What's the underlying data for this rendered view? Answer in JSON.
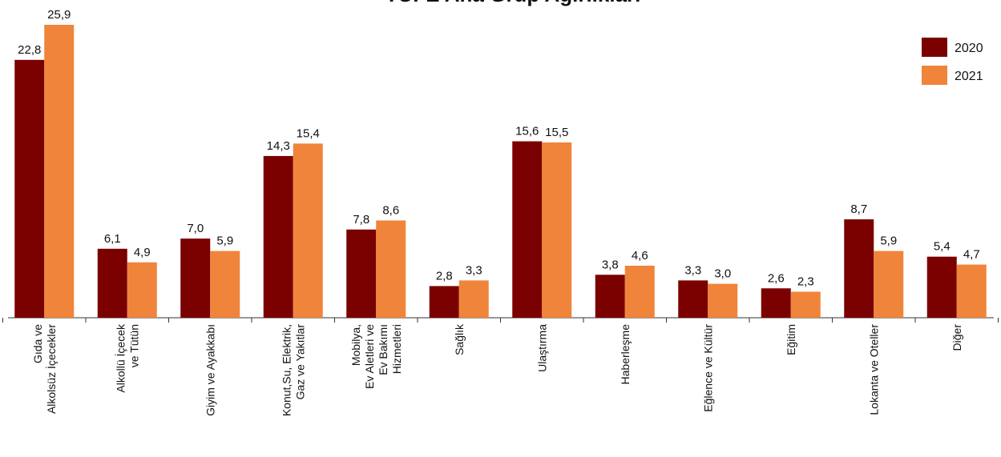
{
  "chart_data": {
    "type": "bar",
    "title": "TÜFE Ana Grup Ağırlıkları",
    "categories": [
      [
        "Gıda ve",
        "Alkolsüz İçecekler"
      ],
      [
        "Alkollü İçecek",
        "ve Tütün"
      ],
      [
        "Giyim ve Ayakkabı"
      ],
      [
        "Konut,Su, Elektrik,",
        "Gaz ve Yakıtlar"
      ],
      [
        "Mobilya,",
        "Ev Aletleri ve",
        "Ev Bakımı",
        "Hizmetleri"
      ],
      [
        "Sağlık"
      ],
      [
        "Ulaştırma"
      ],
      [
        "Haberleşme"
      ],
      [
        "Eğlence ve Kültür"
      ],
      [
        "Eğitim"
      ],
      [
        "Lokanta ve Oteller"
      ],
      [
        "Diğer"
      ]
    ],
    "series": [
      {
        "name": "2020",
        "color": "#7b0000",
        "values": [
          22.8,
          6.1,
          7.0,
          14.3,
          7.8,
          2.8,
          15.6,
          3.8,
          3.3,
          2.6,
          8.7,
          5.4
        ],
        "value_labels": [
          "22,8",
          "6,1",
          "7,0",
          "14,3",
          "7,8",
          "2,8",
          "15,6",
          "3,8",
          "3,3",
          "2,6",
          "8,7",
          "5,4"
        ]
      },
      {
        "name": "2021",
        "color": "#f0843a",
        "values": [
          25.9,
          4.9,
          5.9,
          15.4,
          8.6,
          3.3,
          15.5,
          4.6,
          3.0,
          2.3,
          5.9,
          4.7
        ],
        "value_labels": [
          "25,9",
          "4,9",
          "5,9",
          "15,4",
          "8,6",
          "3,3",
          "15,5",
          "4,6",
          "3,0",
          "2,3",
          "5,9",
          "4,7"
        ]
      }
    ],
    "legend": "top-right"
  }
}
